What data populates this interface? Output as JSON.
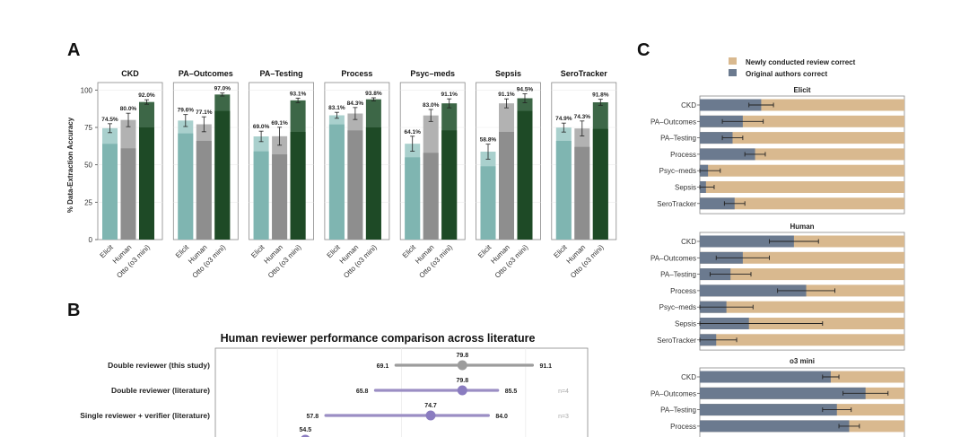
{
  "panel_labels": {
    "a": "A",
    "b": "B",
    "c": "C"
  },
  "colors": {
    "elicit_dark": "#7fb5b1",
    "elicit_light": "#a9d0cd",
    "human_dark": "#8e8e8e",
    "human_light": "#b2b2b2",
    "otto_dark": "#1e4a26",
    "otto_light": "#3d6747",
    "newly_correct": "#d9b98f",
    "original_correct": "#6b7a8f",
    "b_gray": "#9c9c9c",
    "b_purple": "#9b8ec4",
    "b_purple_dot": "#8a7cc0"
  },
  "chart_data": [
    {
      "type": "bar",
      "id": "A",
      "ylabel": "% Data-Extraction Accuracy",
      "ylim": [
        0,
        105
      ],
      "yticks": [
        0,
        25,
        50,
        75,
        100
      ],
      "categories": [
        "Elicit",
        "Human",
        "Otto (o3 mini)"
      ],
      "panels": [
        {
          "title": "CKD",
          "values": [
            74.5,
            80.0,
            92.0
          ],
          "value_labels": [
            "74.5%",
            "80.0%",
            "92.0%"
          ],
          "lower": [
            64,
            61,
            75
          ],
          "err": [
            3,
            4.5,
            1.5
          ]
        },
        {
          "title": "PA–Outcomes",
          "values": [
            79.6,
            77.1,
            97.0
          ],
          "value_labels": [
            "79.6%",
            "77.1%",
            "97.0%"
          ],
          "lower": [
            71,
            66,
            86
          ],
          "err": [
            4,
            5,
            1
          ]
        },
        {
          "title": "PA–Testing",
          "values": [
            69.0,
            69.1,
            93.1
          ],
          "value_labels": [
            "69.0%",
            "69.1%",
            "93.1%"
          ],
          "lower": [
            59,
            57,
            72
          ],
          "err": [
            3.5,
            6,
            1.5
          ]
        },
        {
          "title": "Process",
          "values": [
            83.1,
            84.3,
            93.8
          ],
          "value_labels": [
            "83.1%",
            "84.3%",
            "93.8%"
          ],
          "lower": [
            77,
            73,
            75
          ],
          "err": [
            2,
            4,
            1
          ]
        },
        {
          "title": "Psyc–meds",
          "values": [
            64.1,
            83.0,
            91.1
          ],
          "value_labels": [
            "64.1%",
            "83.0%",
            "91.1%"
          ],
          "lower": [
            55,
            58,
            73
          ],
          "err": [
            5,
            4,
            3
          ]
        },
        {
          "title": "Sepsis",
          "values": [
            58.8,
            91.1,
            94.5
          ],
          "value_labels": [
            "58.8%",
            "91.1%",
            "94.5%"
          ],
          "lower": [
            49,
            72,
            86
          ],
          "err": [
            5,
            3,
            3
          ]
        },
        {
          "title": "SeroTracker",
          "values": [
            74.9,
            74.3,
            91.8
          ],
          "value_labels": [
            "74.9%",
            "74.3%",
            "91.8%"
          ],
          "lower": [
            66,
            62,
            74
          ],
          "err": [
            3,
            5,
            2
          ]
        }
      ]
    },
    {
      "type": "scatter",
      "id": "B",
      "title": "Human reviewer performance comparison across literature",
      "xlim": [
        40,
        100
      ],
      "rows": [
        {
          "label": "Double reviewer (this study)",
          "mean": 79.8,
          "low": 69.1,
          "high": 91.1,
          "mean_label": "79.8",
          "low_label": "69.1",
          "high_label": "91.1",
          "n": "",
          "color": "gray"
        },
        {
          "label": "Double reviewer (literature)",
          "mean": 79.8,
          "low": 65.8,
          "high": 85.5,
          "mean_label": "79.8",
          "low_label": "65.8",
          "high_label": "85.5",
          "n": "n=4",
          "color": "purple"
        },
        {
          "label": "Single reviewer + verifier (literature)",
          "mean": 74.7,
          "low": 57.8,
          "high": 84.0,
          "mean_label": "74.7",
          "low_label": "57.8",
          "high_label": "84.0",
          "n": "n=3",
          "color": "purple"
        },
        {
          "label": "",
          "mean": 54.5,
          "low": 0,
          "high": 0,
          "mean_label": "54.5",
          "low_label": "",
          "high_label": "",
          "n": "",
          "color": "purple"
        }
      ]
    },
    {
      "type": "bar",
      "id": "C",
      "orientation": "horizontal-stacked",
      "legend": [
        "Newly conducted review correct",
        "Original authors correct"
      ],
      "xlim": [
        0,
        100
      ],
      "panels": [
        {
          "title": "Elicit",
          "categories": [
            "CKD",
            "PA–Outcomes",
            "PA–Testing",
            "Process",
            "Psyc–meds",
            "Sepsis",
            "SeroTracker"
          ],
          "values": [
            30,
            21,
            16,
            27,
            4,
            3,
            17
          ],
          "err": [
            6,
            10,
            5,
            5,
            6,
            4,
            5
          ]
        },
        {
          "title": "Human",
          "categories": [
            "CKD",
            "PA–Outcomes",
            "PA–Testing",
            "Process",
            "Psyc–meds",
            "Sepsis",
            "SeroTracker"
          ],
          "values": [
            46,
            21,
            15,
            52,
            13,
            24,
            8
          ],
          "err": [
            12,
            13,
            10,
            14,
            13,
            36,
            10
          ]
        },
        {
          "title": "o3 mini",
          "categories": [
            "CKD",
            "PA–Outcomes",
            "PA–Testing",
            "Process"
          ],
          "values": [
            64,
            81,
            67,
            73
          ],
          "err": [
            4,
            11,
            7,
            5
          ]
        }
      ]
    }
  ]
}
